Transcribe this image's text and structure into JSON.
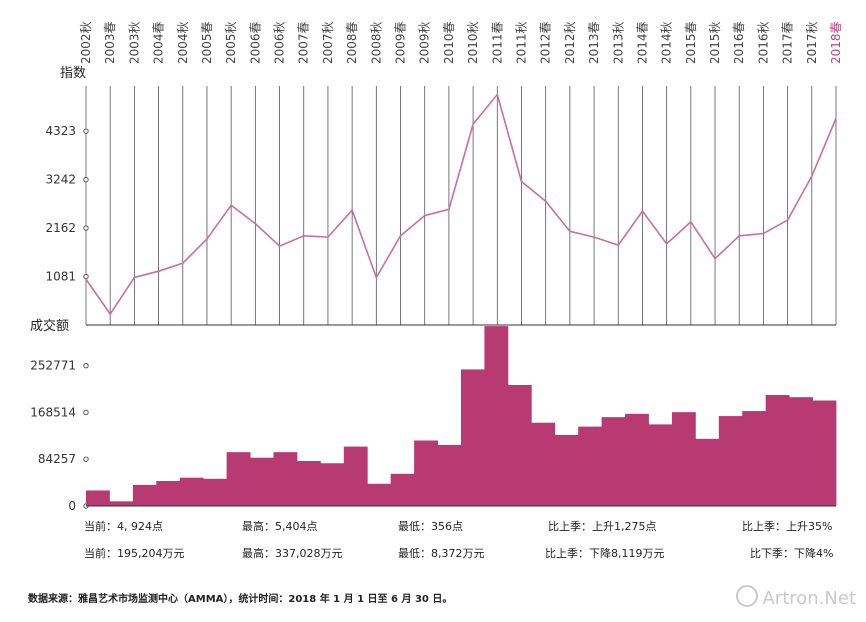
{
  "chart_data": [
    {
      "type": "line",
      "title": "指数",
      "ylabel": "指数",
      "yticks": [
        1081,
        2162,
        3242,
        4323
      ],
      "ylim": [
        0,
        5330
      ],
      "categories": [
        "2002秋",
        "2003春",
        "2003秋",
        "2004春",
        "2004秋",
        "2005春",
        "2005秋",
        "2006春",
        "2006秋",
        "2007春",
        "2007秋",
        "2008春",
        "2008秋",
        "2009春",
        "2009秋",
        "2010春",
        "2010秋",
        "2011春",
        "2011秋",
        "2012春",
        "2012秋",
        "2013春",
        "2013秋",
        "2014春",
        "2014秋",
        "2015春",
        "2015秋",
        "2016春",
        "2016秋",
        "2017春",
        "2017秋",
        "2018春"
      ],
      "values": [
        1020,
        245,
        1060,
        1200,
        1380,
        1920,
        2670,
        2260,
        1760,
        1990,
        1960,
        2560,
        1060,
        1990,
        2440,
        2580,
        4480,
        5140,
        3200,
        2760,
        2090,
        1960,
        1780,
        2540,
        1810,
        2300,
        1480,
        1990,
        2040,
        2340,
        3320,
        4610
      ],
      "series_color": "#c97098"
    },
    {
      "type": "bar",
      "title": "成交额",
      "ylabel": "成交额",
      "yticks": [
        0,
        84257,
        168514,
        252771
      ],
      "ylim": [
        0,
        326000
      ],
      "categories": [
        "2002秋",
        "2003春",
        "2003秋",
        "2004春",
        "2004秋",
        "2005春",
        "2005秋",
        "2006春",
        "2006秋",
        "2007春",
        "2007秋",
        "2008春",
        "2008秋",
        "2009春",
        "2009秋",
        "2010春",
        "2010秋",
        "2011春",
        "2011秋",
        "2012春",
        "2012秋",
        "2013春",
        "2013秋",
        "2014春",
        "2014秋",
        "2015春",
        "2015秋",
        "2016春",
        "2016秋",
        "2017春",
        "2017秋",
        "2018春"
      ],
      "values": [
        28000,
        8400,
        38000,
        45000,
        51000,
        49000,
        97000,
        87000,
        97000,
        81000,
        77000,
        107000,
        40000,
        58000,
        118000,
        110000,
        246000,
        324000,
        218000,
        150000,
        128000,
        143000,
        160000,
        166000,
        147000,
        169000,
        121000,
        162000,
        171000,
        200000,
        196000,
        190000
      ],
      "series_color": "#b83a73"
    }
  ],
  "x_labels": [
    "2002秋",
    "2003春",
    "2003秋",
    "2004春",
    "2004秋",
    "2005春",
    "2005秋",
    "2006春",
    "2006秋",
    "2007春",
    "2007秋",
    "2008春",
    "2008秋",
    "2009春",
    "2009秋",
    "2010春",
    "2010秋",
    "2011春",
    "2011秋",
    "2012春",
    "2012秋",
    "2013春",
    "2013秋",
    "2014春",
    "2014秋",
    "2015春",
    "2015秋",
    "2016春",
    "2016秋",
    "2017春",
    "2017秋",
    "2018春"
  ],
  "current_period": "2018春",
  "stats": {
    "row1": {
      "current": "当前：4, 924点",
      "high": "最高：5,404点",
      "low": "最低：356点",
      "qoq": "比上季：上升1,275点",
      "qoq_pct": "比上季：上升35%"
    },
    "row2": {
      "current": "当前：195,204万元",
      "high": "最高：337,028万元",
      "low": "最低：8,372万元",
      "qoq": "比上季：下降8,119万元",
      "qoq_pct": "比下季：下降4%"
    }
  },
  "source_note": "数据来源：雅昌艺术市场监测中心（AMMA），统计时间：2018 年 1 月 1 日至 6 月 30 日。",
  "watermark": "Artron.Net"
}
